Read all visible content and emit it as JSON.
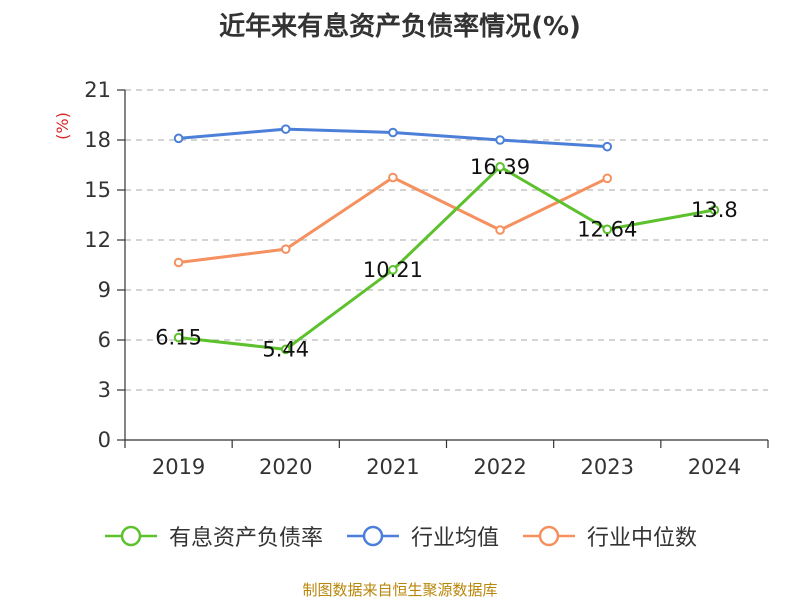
{
  "colors": {
    "有息资产负债率": "#5cc12d",
    "行业均值": "#4b7fd8",
    "行业中位数": "#f5905f",
    "axis": "#333333",
    "grid": "#bbbbbb",
    "unit": "#d62728",
    "source": "#b8860b"
  },
  "chart_data": {
    "type": "line",
    "title": "近年来有息资产负债率情况(%)",
    "ylabel": "(%)",
    "xlabel": "",
    "categories": [
      "2019",
      "2020",
      "2021",
      "2022",
      "2023",
      "2024"
    ],
    "ylim": [
      0,
      21
    ],
    "yticks": [
      "0",
      "3",
      "6",
      "9",
      "12",
      "15",
      "18",
      "21"
    ],
    "grid": "horizontal dashed",
    "legend_position": "bottom",
    "series": [
      {
        "name": "有息资产负债率",
        "values": [
          6.15,
          5.44,
          10.21,
          16.39,
          12.64,
          13.8
        ],
        "labels": [
          "6.15",
          "5.44",
          "10.21",
          "16.39",
          "12.64",
          "13.8"
        ]
      },
      {
        "name": "行业均值",
        "values": [
          18.1,
          18.65,
          18.45,
          18.0,
          17.6,
          null
        ]
      },
      {
        "name": "行业中位数",
        "values": [
          10.65,
          11.45,
          15.75,
          12.6,
          15.7,
          null
        ]
      }
    ]
  },
  "legend": {
    "items": [
      {
        "label": "有息资产负债率",
        "icon": "line-circle-icon"
      },
      {
        "label": "行业均值",
        "icon": "line-circle-icon"
      },
      {
        "label": "行业中位数",
        "icon": "line-circle-icon"
      }
    ]
  },
  "source": {
    "text": "制图数据来自恒生聚源数据库"
  }
}
